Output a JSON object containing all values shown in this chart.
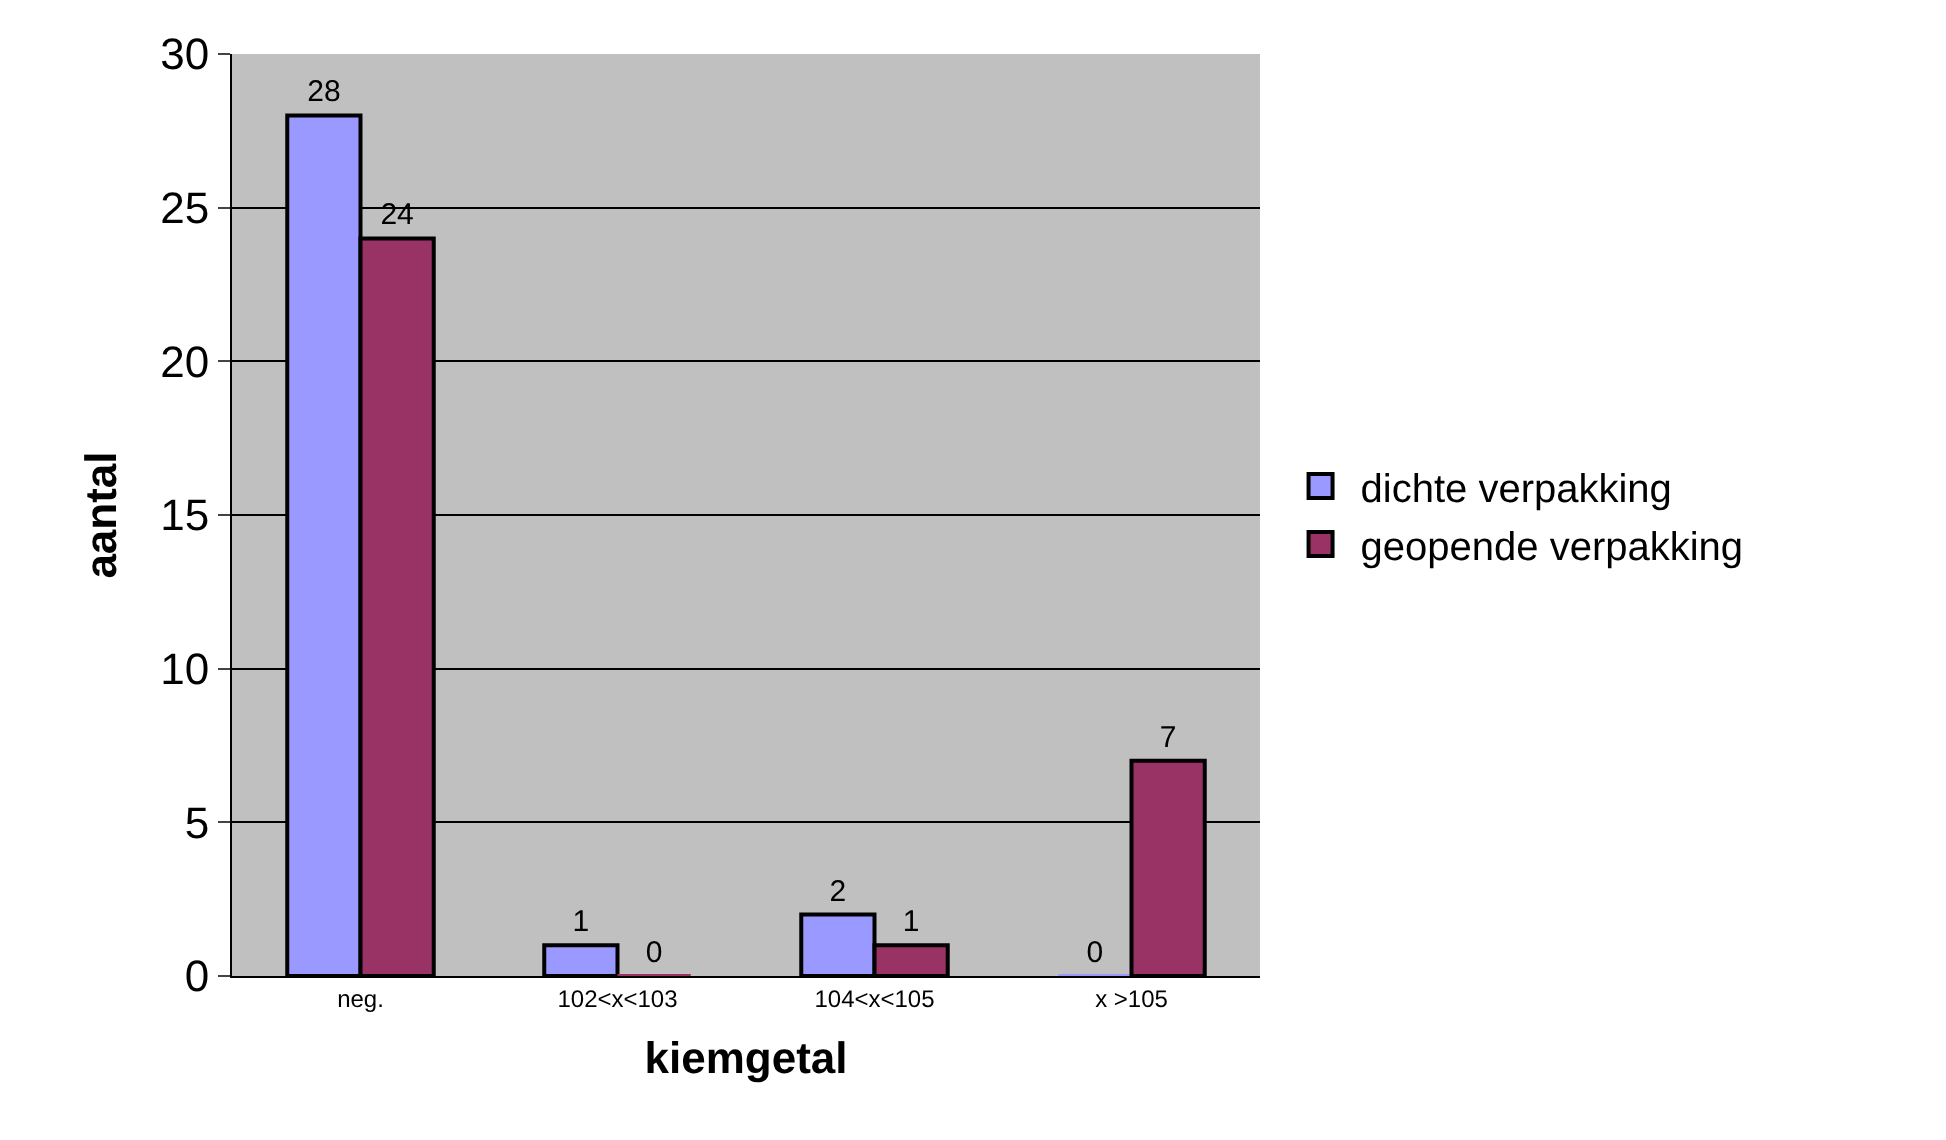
{
  "chart_data": {
    "type": "bar",
    "xlabel": "kiemgetal",
    "ylabel": "aantal",
    "categories": [
      "neg.",
      "102<x<103",
      "104<x<105",
      "x >105"
    ],
    "series": [
      {
        "name": "dichte verpakking",
        "color": "#9999ff",
        "values": [
          28,
          1,
          2,
          0
        ]
      },
      {
        "name": "geopende verpakking",
        "color": "#993366",
        "values": [
          24,
          0,
          1,
          7
        ]
      }
    ],
    "ylim": [
      0,
      30
    ],
    "yticks": [
      0,
      5,
      10,
      15,
      20,
      25,
      30
    ],
    "grid": "y",
    "legend": "right",
    "data_labels": true
  }
}
